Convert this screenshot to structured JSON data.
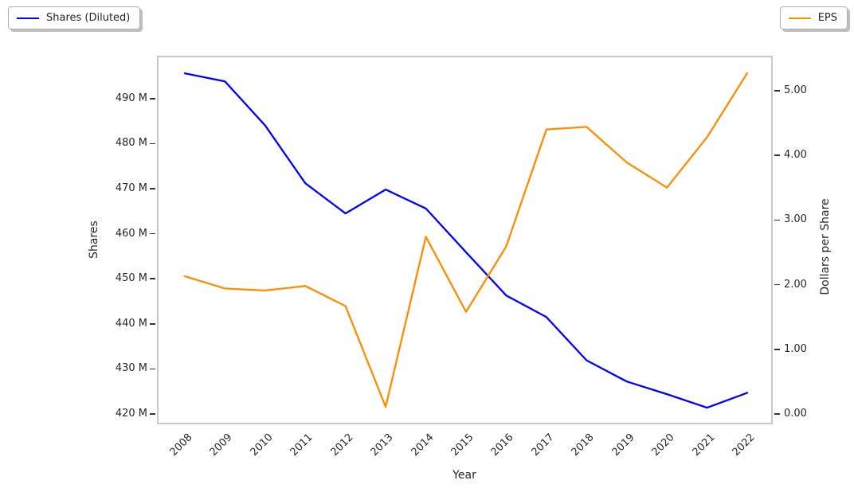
{
  "figure": {
    "background": "#ffffff",
    "text_color": "#262626",
    "frame_color": "#c8c8c8"
  },
  "legend_left": {
    "label": "Shares (Diluted)",
    "color": "#0000ff"
  },
  "legend_right": {
    "label": "EPS",
    "color": "#ff8c00"
  },
  "chart_data": {
    "type": "line",
    "title": "",
    "xlabel": "Year",
    "ylabel_left": "Shares",
    "ylabel_right": "Dollars per Share",
    "x": [
      2008,
      2009,
      2010,
      2011,
      2012,
      2013,
      2014,
      2015,
      2016,
      2017,
      2018,
      2019,
      2020,
      2021,
      2022
    ],
    "x_tick_labels": [
      "2008",
      "2009",
      "2010",
      "2011",
      "2012",
      "2013",
      "2014",
      "2015",
      "2016",
      "2017",
      "2018",
      "2019",
      "2020",
      "2021",
      "2022"
    ],
    "x_tick_rotation_deg": -45,
    "grid": false,
    "legend_positions": [
      "top-left",
      "top-right"
    ],
    "series": [
      {
        "name": "Shares (Diluted)",
        "axis": "left",
        "color": "#0000ff",
        "unit": "millions of shares",
        "values": [
          495.6,
          493.8,
          484.0,
          471.2,
          464.5,
          469.8,
          465.6,
          455.9,
          446.3,
          441.5,
          431.9,
          427.2,
          424.4,
          421.4,
          424.7
        ]
      },
      {
        "name": "EPS",
        "axis": "right",
        "color": "#ff8c00",
        "unit": "dollars per share",
        "values": [
          2.13,
          1.94,
          1.91,
          1.98,
          1.67,
          0.11,
          2.74,
          1.58,
          2.59,
          4.4,
          4.44,
          3.89,
          3.5,
          4.28,
          5.27
        ]
      }
    ],
    "left_axis": {
      "range": [
        417.7,
        499.5
      ],
      "ticks": [
        {
          "v": 420,
          "label": "420 M"
        },
        {
          "v": 430,
          "label": "430 M"
        },
        {
          "v": 440,
          "label": "440 M"
        },
        {
          "v": 450,
          "label": "450 M"
        },
        {
          "v": 460,
          "label": "460 M"
        },
        {
          "v": 470,
          "label": "470 M"
        },
        {
          "v": 480,
          "label": "480 M"
        },
        {
          "v": 490,
          "label": "490 M"
        }
      ]
    },
    "right_axis": {
      "range": [
        -0.16,
        5.54
      ],
      "ticks": [
        {
          "v": 0,
          "label": "0.00"
        },
        {
          "v": 1,
          "label": "1.00"
        },
        {
          "v": 2,
          "label": "2.00"
        },
        {
          "v": 3,
          "label": "3.00"
        },
        {
          "v": 4,
          "label": "4.00"
        },
        {
          "v": 5,
          "label": "5.00"
        }
      ]
    }
  }
}
